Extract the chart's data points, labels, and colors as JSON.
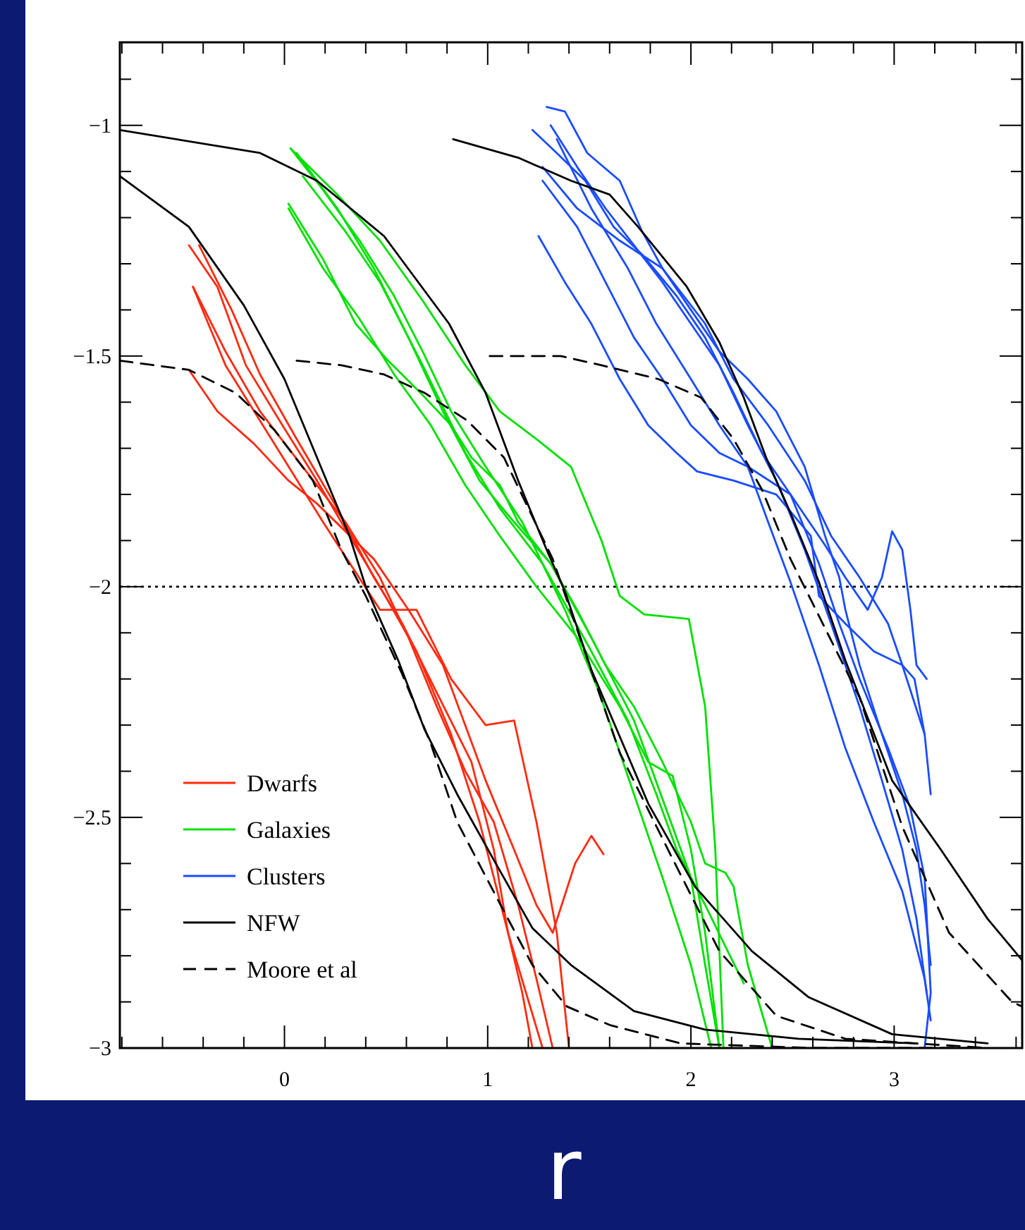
{
  "chart_data": {
    "type": "line",
    "xlabel": "r",
    "xlim": [
      -0.81,
      3.63
    ],
    "ylim": [
      -3,
      -0.82
    ],
    "xticks": [
      {
        "value": -0.8,
        "label": null
      },
      {
        "value": -0.6,
        "label": null
      },
      {
        "value": -0.4,
        "label": null
      },
      {
        "value": -0.2,
        "label": null
      },
      0,
      {
        "value": 0.2,
        "label": null
      },
      {
        "value": 0.4,
        "label": null
      },
      {
        "value": 0.6,
        "label": null
      },
      {
        "value": 0.8,
        "label": null
      },
      1,
      {
        "value": 1.2,
        "label": null
      },
      {
        "value": 1.4,
        "label": null
      },
      {
        "value": 1.6,
        "label": null
      },
      {
        "value": 1.8,
        "label": null
      },
      2,
      {
        "value": 2.2,
        "label": null
      },
      {
        "value": 2.4,
        "label": null
      },
      {
        "value": 2.6,
        "label": null
      },
      {
        "value": 2.8,
        "label": null
      },
      3,
      {
        "value": 3.2,
        "label": null
      },
      {
        "value": 3.4,
        "label": null
      },
      {
        "value": 3.6,
        "label": null
      }
    ],
    "yticks": [
      {
        "value": -0.9,
        "label": null
      },
      -1,
      {
        "value": -1.1,
        "label": null
      },
      {
        "value": -1.2,
        "label": null
      },
      {
        "value": -1.3,
        "label": null
      },
      {
        "value": -1.4,
        "label": null
      },
      -1.5,
      {
        "value": -1.6,
        "label": null
      },
      {
        "value": -1.7,
        "label": null
      },
      {
        "value": -1.8,
        "label": null
      },
      {
        "value": -1.9,
        "label": null
      },
      -2,
      {
        "value": -2.1,
        "label": null
      },
      {
        "value": -2.2,
        "label": null
      },
      {
        "value": -2.3,
        "label": null
      },
      {
        "value": -2.4,
        "label": null
      },
      -2.5,
      {
        "value": -2.6,
        "label": null
      },
      {
        "value": -2.7,
        "label": null
      },
      {
        "value": -2.8,
        "label": null
      },
      {
        "value": -2.9,
        "label": null
      },
      -3
    ],
    "legend": "bottom left",
    "grid": false,
    "marker": "none",
    "ref_lines": [
      {
        "axis": "y",
        "value": -2,
        "color": "#000000",
        "line_style": "dotted"
      }
    ],
    "series": [
      {
        "name": "Dwarfs",
        "color": "#ff2a10",
        "x": [
          -0.47,
          -0.33,
          -0.19,
          -0.01,
          0.16,
          0.32,
          0.47,
          0.65,
          0.82,
          0.96,
          1.1,
          1.27
        ],
        "values": [
          -1.26,
          -1.35,
          -1.52,
          -1.65,
          -1.77,
          -1.89,
          -2.0,
          -2.14,
          -2.32,
          -2.51,
          -2.75,
          -3.0
        ]
      },
      {
        "color": "#ff2a10",
        "x": [
          -0.45,
          -0.29,
          -0.05,
          0.19,
          0.47,
          0.65,
          0.82,
          0.99,
          1.13,
          1.24,
          1.34,
          1.4
        ],
        "values": [
          -1.35,
          -1.52,
          -1.69,
          -1.86,
          -2.05,
          -2.05,
          -2.2,
          -2.3,
          -2.29,
          -2.51,
          -2.75,
          -3.0
        ]
      },
      {
        "color": "#ff2a10",
        "x": [
          -0.42,
          -0.26,
          -0.12,
          0.06,
          0.26,
          0.44,
          0.58,
          0.75,
          0.92,
          1.03,
          1.1,
          1.17,
          1.22
        ],
        "values": [
          -1.26,
          -1.4,
          -1.54,
          -1.68,
          -1.83,
          -1.98,
          -2.08,
          -2.23,
          -2.38,
          -2.57,
          -2.75,
          -2.88,
          -3.0
        ]
      },
      {
        "color": "#ff2a10",
        "x": [
          -0.47,
          -0.33,
          -0.15,
          0.02,
          0.16,
          0.3,
          0.44,
          0.61,
          0.78,
          0.99,
          1.13,
          1.24,
          1.32,
          1.43,
          1.51,
          1.57
        ],
        "values": [
          -1.53,
          -1.62,
          -1.69,
          -1.77,
          -1.82,
          -1.88,
          -1.94,
          -2.05,
          -2.17,
          -2.42,
          -2.57,
          -2.69,
          -2.75,
          -2.6,
          -2.54,
          -2.58
        ]
      },
      {
        "color": "#ff2a10",
        "x": [
          -0.45,
          -0.29,
          -0.12,
          0.09,
          0.3,
          0.47,
          0.61,
          0.75,
          0.89,
          1.03,
          1.15,
          1.24,
          1.32
        ],
        "values": [
          -1.35,
          -1.49,
          -1.62,
          -1.74,
          -1.86,
          -1.98,
          -2.11,
          -2.26,
          -2.4,
          -2.51,
          -2.69,
          -2.85,
          -3.0
        ]
      },
      {
        "name": "Galaxies",
        "color": "#00e000",
        "x": [
          0.03,
          0.19,
          0.37,
          0.54,
          0.68,
          0.82,
          0.99,
          1.17,
          1.38,
          1.55,
          1.72,
          1.86,
          2.0,
          2.1
        ],
        "values": [
          -1.05,
          -1.14,
          -1.25,
          -1.37,
          -1.49,
          -1.62,
          -1.74,
          -1.86,
          -2.05,
          -2.23,
          -2.45,
          -2.63,
          -2.82,
          -3.0
        ]
      },
      {
        "color": "#00e000",
        "x": [
          0.02,
          0.19,
          0.35,
          0.51,
          0.67,
          0.82,
          0.92,
          1.06,
          1.15,
          1.31,
          1.51,
          1.72,
          1.86,
          2.0,
          2.07,
          2.14
        ],
        "values": [
          -1.17,
          -1.29,
          -1.43,
          -1.51,
          -1.58,
          -1.65,
          -1.72,
          -1.78,
          -1.86,
          -1.95,
          -2.11,
          -2.29,
          -2.46,
          -2.63,
          -2.82,
          -3.0
        ]
      },
      {
        "color": "#00e000",
        "x": [
          0.03,
          0.26,
          0.47,
          0.68,
          0.89,
          1.06,
          1.24,
          1.41,
          1.56,
          1.65,
          1.77,
          1.99,
          2.07,
          2.12,
          2.16
        ],
        "values": [
          -1.05,
          -1.15,
          -1.25,
          -1.38,
          -1.52,
          -1.62,
          -1.68,
          -1.74,
          -1.9,
          -2.02,
          -2.06,
          -2.07,
          -2.26,
          -2.57,
          -3.0
        ]
      },
      {
        "color": "#00e000",
        "x": [
          0.06,
          0.26,
          0.44,
          0.61,
          0.78,
          0.96,
          1.13,
          1.31,
          1.44,
          1.58,
          1.72,
          1.86,
          2.0,
          2.07,
          2.17,
          2.21,
          2.28,
          2.4
        ],
        "values": [
          -1.06,
          -1.18,
          -1.31,
          -1.46,
          -1.62,
          -1.77,
          -1.86,
          -1.95,
          -2.05,
          -2.17,
          -2.26,
          -2.38,
          -2.51,
          -2.6,
          -2.62,
          -2.65,
          -2.82,
          -3.0
        ]
      },
      {
        "color": "#00e000",
        "x": [
          0.02,
          0.19,
          0.37,
          0.54,
          0.72,
          0.89,
          1.06,
          1.24,
          1.44,
          1.65,
          1.79,
          1.91,
          2.0,
          2.07,
          2.14
        ],
        "values": [
          -1.18,
          -1.31,
          -1.42,
          -1.54,
          -1.65,
          -1.78,
          -1.89,
          -2.0,
          -2.11,
          -2.26,
          -2.38,
          -2.41,
          -2.57,
          -2.75,
          -3.0
        ]
      },
      {
        "color": "#00e000",
        "x": [
          0.09,
          0.3,
          0.47,
          0.68,
          0.89,
          1.06,
          1.27,
          1.51,
          1.69,
          1.83,
          1.93,
          2.07,
          2.17,
          2.26
        ],
        "values": [
          -1.11,
          -1.23,
          -1.34,
          -1.52,
          -1.71,
          -1.83,
          -1.95,
          -2.14,
          -2.29,
          -2.45,
          -2.57,
          -2.69,
          -2.78,
          -2.86
        ]
      },
      {
        "name": "Clusters",
        "color": "#1a4cff",
        "x": [
          1.29,
          1.38,
          1.49,
          1.65,
          1.76,
          1.86,
          2.0,
          2.14,
          2.28,
          2.42,
          2.56,
          2.66,
          2.73,
          2.76,
          2.83,
          2.94,
          3.04,
          3.11,
          3.15,
          3.18
        ],
        "values": [
          -0.96,
          -0.97,
          -1.06,
          -1.12,
          -1.23,
          -1.31,
          -1.4,
          -1.49,
          -1.55,
          -1.62,
          -1.74,
          -1.89,
          -1.98,
          -2.05,
          -2.17,
          -2.32,
          -2.45,
          -2.57,
          -2.69,
          -2.82
        ]
      },
      {
        "color": "#1a4cff",
        "x": [
          1.22,
          1.34,
          1.48,
          1.62,
          1.76,
          1.93,
          2.07,
          2.21,
          2.35,
          2.49,
          2.63,
          2.73,
          2.83,
          2.97,
          3.08,
          3.15,
          3.18,
          3.15
        ],
        "values": [
          -1.01,
          -1.06,
          -1.12,
          -1.22,
          -1.28,
          -1.37,
          -1.46,
          -1.58,
          -1.71,
          -1.8,
          -1.95,
          -2.08,
          -2.2,
          -2.35,
          -2.48,
          -2.63,
          -2.88,
          -3.0
        ]
      },
      {
        "color": "#1a4cff",
        "x": [
          1.25,
          1.38,
          1.51,
          1.65,
          1.79,
          1.93,
          2.03,
          2.21,
          2.42,
          2.59,
          2.63,
          2.76,
          2.9,
          3.04,
          3.1,
          3.15
        ],
        "values": [
          -1.24,
          -1.34,
          -1.43,
          -1.55,
          -1.65,
          -1.71,
          -1.75,
          -1.77,
          -1.8,
          -1.89,
          -2.02,
          -2.08,
          -2.14,
          -2.17,
          -2.2,
          -2.32
        ]
      },
      {
        "color": "#1a4cff",
        "x": [
          1.27,
          1.44,
          1.58,
          1.72,
          1.86,
          2.0,
          2.14,
          2.28,
          2.49,
          2.66,
          2.76,
          2.87,
          2.94,
          2.99,
          3.04,
          3.08,
          3.11,
          3.16
        ],
        "values": [
          -1.12,
          -1.22,
          -1.34,
          -1.46,
          -1.55,
          -1.65,
          -1.71,
          -1.74,
          -1.8,
          -1.91,
          -1.98,
          -2.05,
          -1.98,
          -1.88,
          -1.92,
          -2.05,
          -2.17,
          -2.2
        ]
      },
      {
        "color": "#1a4cff",
        "x": [
          1.34,
          1.51,
          1.69,
          1.83,
          2.0,
          2.14,
          2.28,
          2.38,
          2.49,
          2.63,
          2.76,
          2.9,
          3.04,
          3.15,
          3.18
        ],
        "values": [
          -1.03,
          -1.18,
          -1.31,
          -1.43,
          -1.55,
          -1.65,
          -1.74,
          -1.86,
          -1.99,
          -2.17,
          -2.35,
          -2.51,
          -2.66,
          -2.85,
          -2.94
        ]
      },
      {
        "color": "#1a4cff",
        "x": [
          1.27,
          1.44,
          1.65,
          1.86,
          2.07,
          2.21,
          2.38,
          2.56,
          2.69,
          2.83,
          2.97,
          3.04,
          3.15,
          3.18
        ],
        "values": [
          -1.09,
          -1.18,
          -1.25,
          -1.31,
          -1.43,
          -1.55,
          -1.65,
          -1.77,
          -1.89,
          -1.98,
          -2.08,
          -2.17,
          -2.32,
          -2.45
        ]
      },
      {
        "color": "#1a4cff",
        "x": [
          1.31,
          1.44,
          1.58,
          1.72,
          1.86,
          2.0,
          2.14,
          2.28,
          2.42,
          2.56,
          2.69,
          2.83,
          2.94,
          3.04,
          3.11,
          3.16
        ],
        "values": [
          -1.0,
          -1.09,
          -1.18,
          -1.26,
          -1.34,
          -1.43,
          -1.52,
          -1.65,
          -1.77,
          -1.92,
          -2.08,
          -2.26,
          -2.42,
          -2.57,
          -2.72,
          -2.88
        ]
      },
      {
        "name": "NFW",
        "color": "#000000",
        "line_style": "solid",
        "x": [
          -0.81,
          -0.47,
          -0.2,
          0,
          0.16,
          0.32,
          0.4,
          0.56,
          0.69,
          0.85,
          1.04,
          1.22,
          1.41,
          1.72,
          2.07,
          2.53,
          3.11
        ],
        "values": [
          -1.11,
          -1.22,
          -1.39,
          -1.55,
          -1.72,
          -1.89,
          -2.0,
          -2.16,
          -2.31,
          -2.45,
          -2.6,
          -2.74,
          -2.82,
          -2.92,
          -2.96,
          -2.98,
          -2.99
        ]
      },
      {
        "color": "#000000",
        "line_style": "solid",
        "x": [
          -0.81,
          -0.12,
          0.16,
          0.49,
          0.81,
          0.99,
          1.15,
          1.29,
          1.38,
          1.51,
          1.79,
          2.02,
          2.3,
          2.58,
          2.99,
          3.46
        ],
        "values": [
          -1.01,
          -1.06,
          -1.12,
          -1.24,
          -1.43,
          -1.58,
          -1.77,
          -1.92,
          -2.01,
          -2.18,
          -2.47,
          -2.65,
          -2.79,
          -2.89,
          -2.97,
          -2.99
        ]
      },
      {
        "color": "#000000",
        "line_style": "solid",
        "x": [
          0.83,
          1.15,
          1.41,
          1.6,
          1.74,
          1.98,
          2.14,
          2.26,
          2.37,
          2.49,
          2.63,
          2.76,
          2.99,
          3.23,
          3.46,
          3.63
        ],
        "values": [
          -1.03,
          -1.07,
          -1.12,
          -1.15,
          -1.22,
          -1.35,
          -1.47,
          -1.59,
          -1.72,
          -1.84,
          -1.99,
          -2.16,
          -2.42,
          -2.57,
          -2.72,
          -2.81
        ]
      },
      {
        "name": "Moore et al",
        "color": "#000000",
        "line_style": "dashed",
        "x": [
          -0.81,
          -0.47,
          -0.24,
          -0.05,
          0.14,
          0.28,
          0.4,
          0.58,
          0.72,
          0.85,
          1.04,
          1.22,
          1.39,
          1.6,
          1.95,
          2.6,
          3.4
        ],
        "values": [
          -1.51,
          -1.53,
          -1.58,
          -1.66,
          -1.77,
          -1.92,
          -2.02,
          -2.19,
          -2.34,
          -2.51,
          -2.67,
          -2.82,
          -2.91,
          -2.95,
          -2.99,
          -3.0,
          -3.0
        ]
      },
      {
        "color": "#000000",
        "line_style": "dashed",
        "x": [
          0.06,
          0.28,
          0.49,
          0.69,
          0.9,
          1.08,
          1.2,
          1.32,
          1.65,
          1.91,
          2.14,
          2.42,
          2.76,
          3.46
        ],
        "values": [
          -1.51,
          -1.52,
          -1.54,
          -1.58,
          -1.64,
          -1.72,
          -1.83,
          -1.94,
          -2.36,
          -2.59,
          -2.79,
          -2.93,
          -2.98,
          -3.0
        ]
      },
      {
        "color": "#000000",
        "line_style": "dashed",
        "x": [
          1.01,
          1.36,
          1.56,
          1.84,
          2.05,
          2.21,
          2.35,
          2.49,
          2.83,
          3.04,
          3.27,
          3.58,
          3.63
        ],
        "values": [
          -1.5,
          -1.5,
          -1.52,
          -1.55,
          -1.59,
          -1.68,
          -1.79,
          -1.94,
          -2.24,
          -2.52,
          -2.75,
          -2.9,
          -2.91
        ]
      }
    ]
  }
}
